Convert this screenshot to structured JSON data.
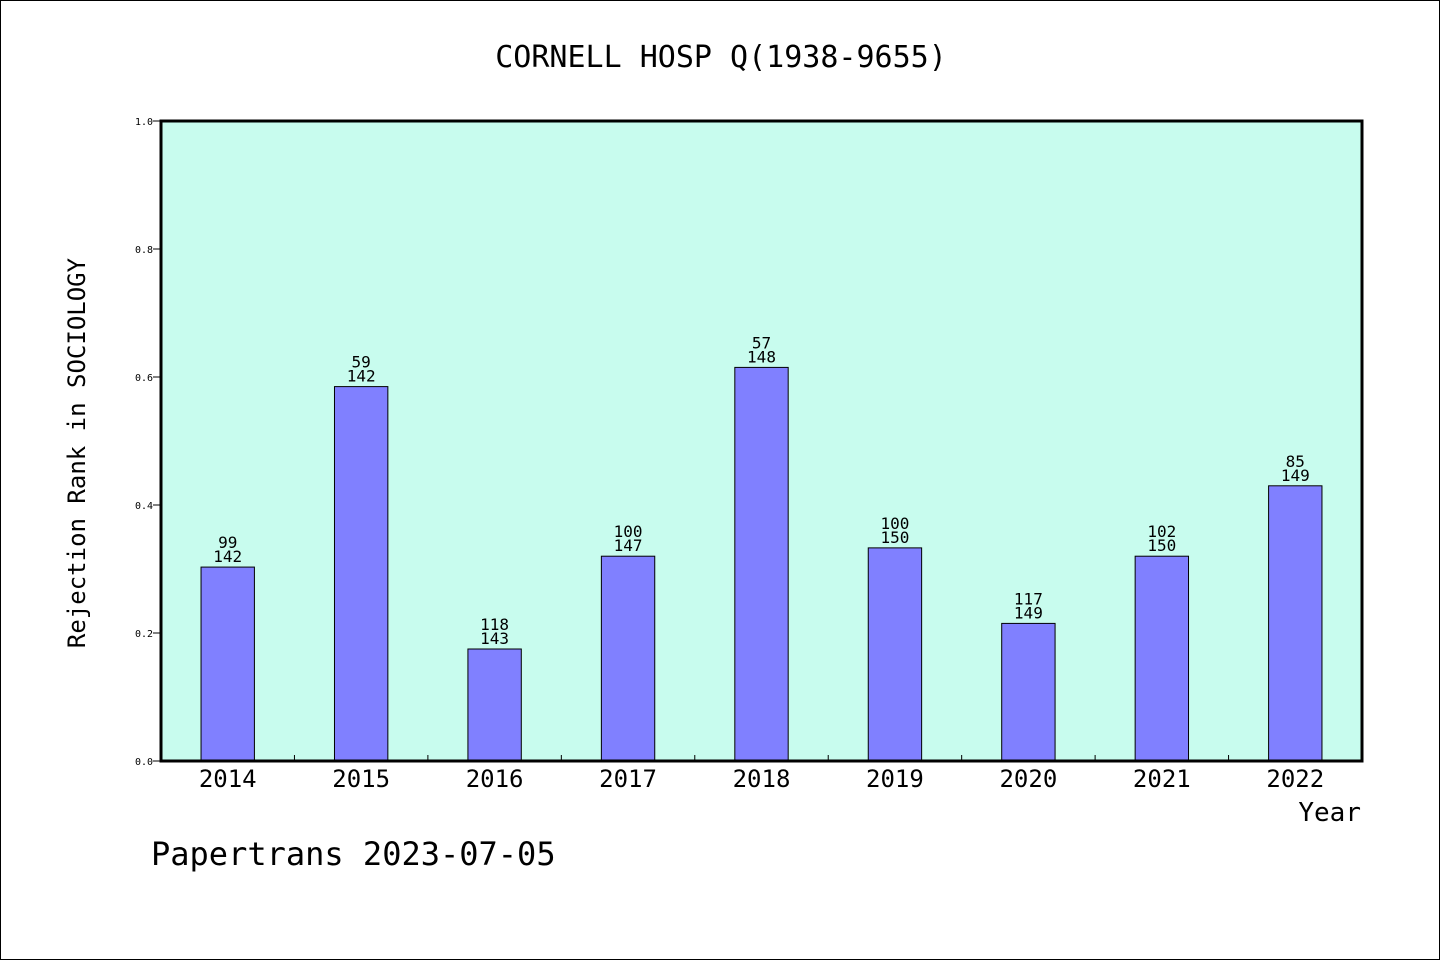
{
  "chart_data": {
    "type": "bar",
    "title": "CORNELL HOSP Q(1938-9655)",
    "xlabel": "Year",
    "ylabel": "Rejection Rank in SOCIOLOGY",
    "categories": [
      "2014",
      "2015",
      "2016",
      "2017",
      "2018",
      "2019",
      "2020",
      "2021",
      "2022"
    ],
    "values": [
      0.303,
      0.585,
      0.175,
      0.32,
      0.615,
      0.333,
      0.215,
      0.32,
      0.43
    ],
    "rank_labels": [
      "99",
      "59",
      "118",
      "100",
      "57",
      "100",
      "117",
      "102",
      "85"
    ],
    "total_labels": [
      "142",
      "142",
      "143",
      "147",
      "148",
      "150",
      "149",
      "150",
      "149"
    ],
    "ylim": [
      0,
      1.0
    ],
    "yticks": [
      "0.0",
      "0.2",
      "0.4",
      "0.6",
      "0.8",
      "1.0"
    ],
    "grid": false,
    "colors": {
      "plot_background": "#c8fcee",
      "bar_fill": "#8080ff",
      "bar_stroke": "#000000",
      "text": "#000000"
    }
  },
  "footer": {
    "watermark": "Papertrans 2023-07-05"
  }
}
